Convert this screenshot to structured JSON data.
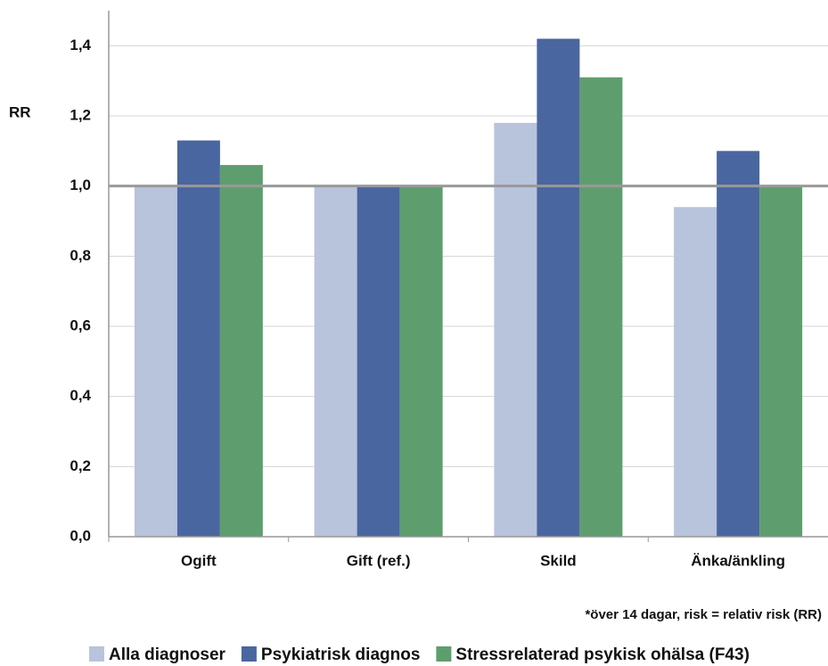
{
  "chart_data": {
    "type": "bar",
    "y_label": "RR",
    "footnote": "*över 14 dagar, risk = relativ risk (RR)",
    "categories": [
      "Ogift",
      "Gift (ref.)",
      "Skild",
      "Änka/änkling"
    ],
    "series": [
      {
        "name": "Alla diagnoser",
        "color": "#b8c3dc",
        "values": [
          1.0,
          1.0,
          1.18,
          0.94
        ]
      },
      {
        "name": "Psykiatrisk diagnos",
        "color": "#4a66a0",
        "values": [
          1.13,
          1.0,
          1.42,
          1.1
        ]
      },
      {
        "name": "Stressrelaterad psykisk ohälsa (F43)",
        "color": "#5e9e6e",
        "values": [
          1.06,
          1.0,
          1.31,
          1.0
        ]
      }
    ],
    "reference_line": 1,
    "ylim": [
      0,
      1.5
    ],
    "yticks": [
      {
        "value": 0,
        "label": "0,0"
      },
      {
        "value": 0.2,
        "label": "0,2"
      },
      {
        "value": 0.4,
        "label": "0,4"
      },
      {
        "value": 0.6,
        "label": "0,6"
      },
      {
        "value": 0.8,
        "label": "0,8"
      },
      {
        "value": 1,
        "label": "1,0"
      },
      {
        "value": 1.2,
        "label": "1,2"
      },
      {
        "value": 1.4,
        "label": "1,4"
      }
    ],
    "grid": true
  }
}
